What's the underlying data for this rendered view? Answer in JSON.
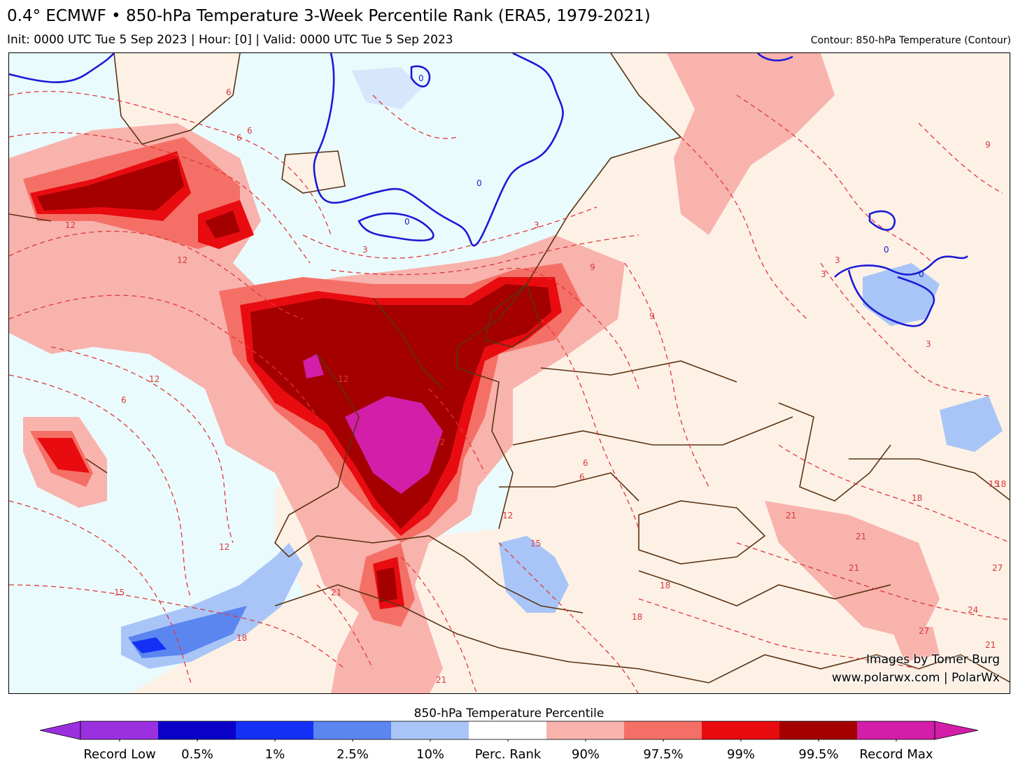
{
  "header": {
    "title": "0.4° ECMWF • 850-hPa Temperature 3-Week Percentile Rank (ERA5, 1979-2021)",
    "subtitle": "Init: 0000 UTC Tue 5 Sep 2023 | Hour: [0] | Valid: 0000 UTC Tue 5 Sep 2023",
    "contour_note": "Contour: 850-hPa Temperature (Contour)"
  },
  "credits": {
    "line1": "Images by Tomer Burg",
    "line2": "www.polarwx.com | PolarWx"
  },
  "colorbar": {
    "title": "850-hPa Temperature Percentile",
    "labels": [
      "Record Low",
      "0.5%",
      "1%",
      "2.5%",
      "10%",
      "Perc. Rank",
      "90%",
      "97.5%",
      "99%",
      "99.5%",
      "Record Max"
    ],
    "colors": [
      "#9b30e0",
      "#0a00c8",
      "#1530f5",
      "#5b86f0",
      "#a9c5f7",
      "#ffffff",
      "#f8b3ad",
      "#f47066",
      "#e80c10",
      "#a40000",
      "#d21ea8"
    ],
    "colors_hex_bins": {
      "record_low": "#9b30e0",
      "p0_5": "#0a00c8",
      "p1": "#1530f5",
      "p2_5": "#5b86f0",
      "p10": "#a9c5f7",
      "neutral": "#ffffff",
      "p90": "#f8b3ad",
      "p97_5": "#f47066",
      "p99": "#e80c10",
      "p99_5": "#a40000",
      "record_max": "#d21ea8"
    }
  },
  "contour_labels": [
    "6",
    "6",
    "12",
    "12",
    "12",
    "6",
    "3",
    "0",
    "0",
    "0",
    "3",
    "9",
    "9",
    "6",
    "3",
    "0",
    "0",
    "3",
    "9",
    "3",
    "12",
    "15",
    "18",
    "21",
    "12",
    "15",
    "18",
    "21",
    "18",
    "21",
    "24",
    "27",
    "21",
    "27",
    "12",
    "12",
    "15",
    "18",
    "18",
    "6",
    "6",
    "21",
    "21"
  ],
  "map_colors": {
    "ocean_neutral": "#eafbfd",
    "land_neutral": "#fdf1e6",
    "borders": "#5a3312",
    "zero_contour": "#1a1ad6",
    "contour": "#e0383a"
  }
}
